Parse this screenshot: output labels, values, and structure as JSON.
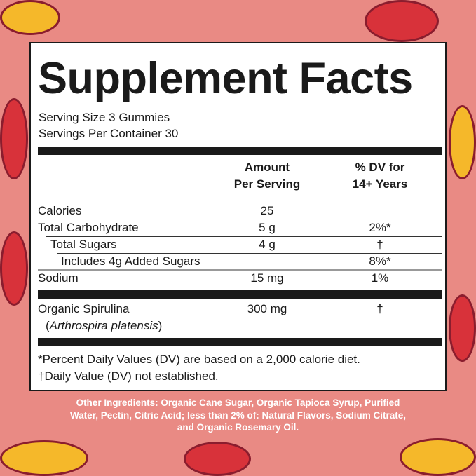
{
  "panel": {
    "title": "Supplement Facts",
    "serving_size": "Serving Size 3 Gummies",
    "servings_per_container": "Servings Per Container 30",
    "headers": {
      "amount_line1": "Amount",
      "amount_line2": "Per Serving",
      "dv_line1": "% DV for",
      "dv_line2": "14+ Years"
    },
    "rows": [
      {
        "name": "Calories",
        "amount": "25",
        "dv": ""
      },
      {
        "name": "Total Carbohydrate",
        "amount": "5 g",
        "dv": "2%*"
      },
      {
        "name": "Total Sugars",
        "amount": "4 g",
        "dv": "†"
      },
      {
        "name": "Includes 4g Added Sugars",
        "amount": "",
        "dv": "8%*"
      },
      {
        "name": "Sodium",
        "amount": "15 mg",
        "dv": "1%"
      },
      {
        "name": "Organic Spirulina",
        "subname": "Arthrospira platensis",
        "amount": "300 mg",
        "dv": "†"
      }
    ],
    "footnotes": [
      "*Percent Daily Values (DV) are based on a 2,000 calorie diet.",
      "†Daily Value (DV) not established."
    ]
  },
  "other_ingredients": {
    "line1": "Other Ingredients: Organic Cane Sugar, Organic Tapioca Syrup, Purified",
    "line2": "Water, Pectin, Citric Acid; less than 2% of: Natural Flavors, Sodium Citrate,",
    "line3": "and Organic Rosemary Oil."
  },
  "colors": {
    "background": "#e98a84",
    "panel": "#ffffff",
    "text": "#1a1a1a"
  }
}
